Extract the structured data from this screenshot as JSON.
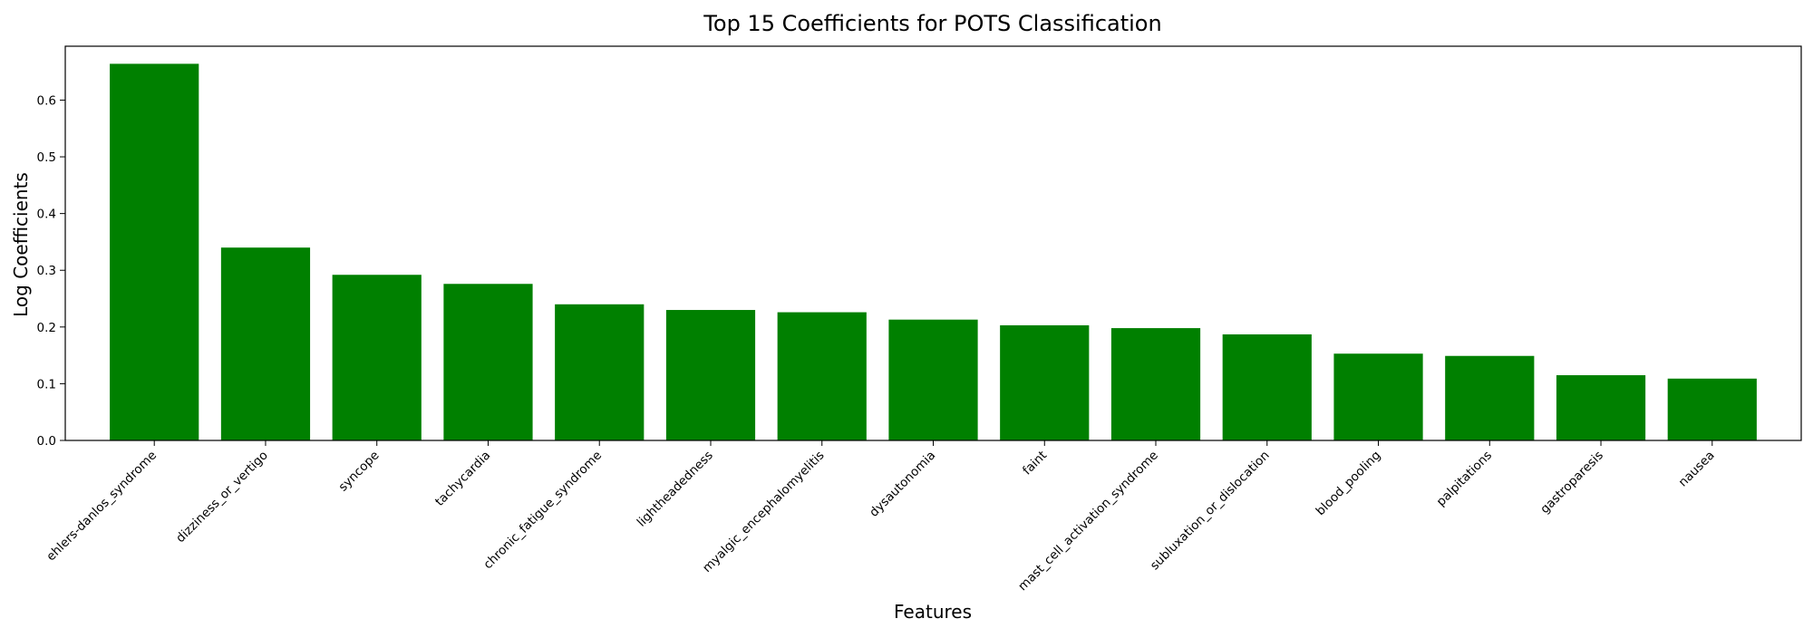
{
  "chart_data": {
    "type": "bar",
    "title": "Top 15 Coefficients for POTS Classification",
    "xlabel": "Features",
    "ylabel": "Log Coefficients",
    "ylim": [
      0,
      0.695
    ],
    "yticks": [
      0.0,
      0.1,
      0.2,
      0.3,
      0.4,
      0.5,
      0.6
    ],
    "ytick_labels": [
      "0.0",
      "0.1",
      "0.2",
      "0.3",
      "0.4",
      "0.5",
      "0.6"
    ],
    "grid": false,
    "bar_color": "#008000",
    "categories": [
      "ehlers-danlos_syndrome",
      "dizziness_or_vertigo",
      "syncope",
      "tachycardia",
      "chronic_fatigue_syndrome",
      "lightheadedness",
      "myalgic_encephalomyelitis",
      "dysautonomia",
      "faint",
      "mast_cell_activation_syndrome",
      "subluxation_or_dislocation",
      "blood_pooling",
      "palpitations",
      "gastroparesis",
      "nausea"
    ],
    "values": [
      0.664,
      0.34,
      0.292,
      0.276,
      0.24,
      0.23,
      0.226,
      0.213,
      0.203,
      0.198,
      0.187,
      0.153,
      0.149,
      0.115,
      0.109
    ]
  }
}
